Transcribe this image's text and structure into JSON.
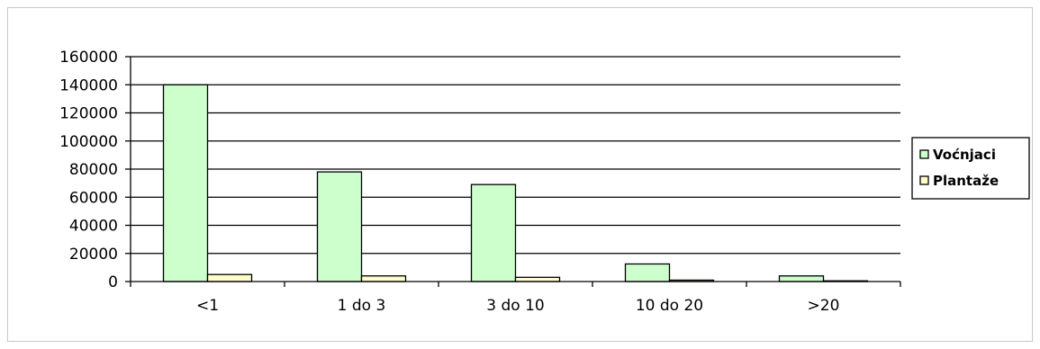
{
  "chart_data": {
    "type": "bar",
    "title": "",
    "xlabel": "",
    "ylabel": "",
    "categories": [
      "<1",
      "1 do 3",
      "3 do 10",
      "10 do 20",
      ">20"
    ],
    "series": [
      {
        "name": "Voćnjaci",
        "color": "#ccffcc",
        "values": [
          140000,
          78000,
          69000,
          12500,
          4000
        ]
      },
      {
        "name": "Plantaže",
        "color": "#ffffcc",
        "values": [
          5000,
          4000,
          3000,
          1000,
          500
        ]
      }
    ],
    "ylim": [
      0,
      160000
    ],
    "yticks": [
      "0",
      "20000",
      "40000",
      "60000",
      "80000",
      "100000",
      "120000",
      "140000",
      "160000"
    ],
    "grid": true,
    "legend_position": "right"
  }
}
